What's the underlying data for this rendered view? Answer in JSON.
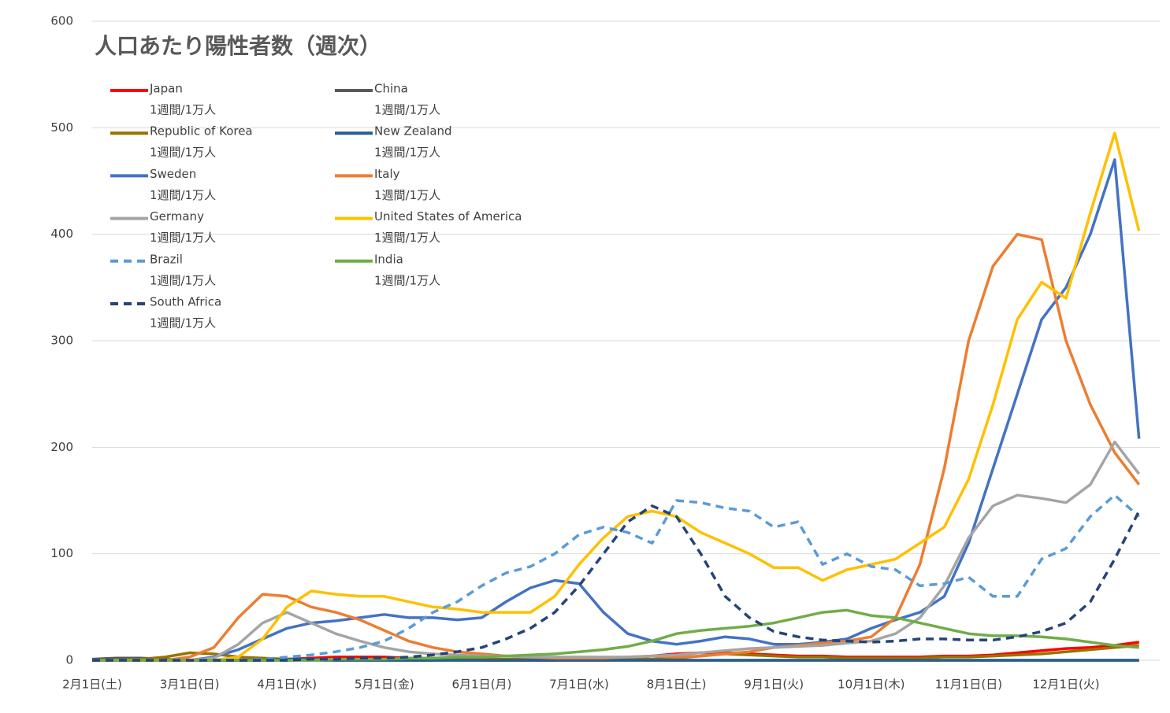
{
  "chart_data": {
    "type": "line",
    "title": "人口あたり陽性者数（週次）",
    "legend_unit": "1週間/1万人",
    "categories": [
      "2月1日(土)",
      null,
      null,
      null,
      "3月1日(日)",
      null,
      null,
      null,
      "4月1日(水)",
      null,
      null,
      null,
      "5月1日(金)",
      null,
      null,
      null,
      "6月1日(月)",
      null,
      null,
      null,
      "7月1日(水)",
      null,
      null,
      null,
      "8月1日(土)",
      null,
      null,
      null,
      "9月1日(火)",
      null,
      null,
      null,
      "10月1日(木)",
      null,
      null,
      null,
      "11月1日(日)",
      null,
      null,
      null,
      "12月1日(火)",
      null,
      null,
      null
    ],
    "ylim": [
      0,
      600
    ],
    "yticks": [
      0,
      100,
      200,
      300,
      400,
      500,
      600
    ],
    "grid": true,
    "legend": "upper left",
    "series": [
      {
        "name": "Japan",
        "color": "#ff0000",
        "style": "solid",
        "values": [
          0,
          0,
          0,
          0,
          0,
          0,
          0,
          1,
          1,
          2,
          3,
          3,
          3,
          2,
          1,
          1,
          0,
          0,
          0,
          0,
          1,
          1,
          2,
          4,
          6,
          7,
          7,
          6,
          5,
          4,
          4,
          3,
          3,
          3,
          3,
          4,
          4,
          5,
          7,
          9,
          11,
          12,
          14,
          17
        ]
      },
      {
        "name": "China",
        "color": "#595959",
        "style": "solid",
        "values": [
          1,
          2,
          2,
          1,
          0,
          0,
          0,
          0,
          0,
          0,
          0,
          0,
          0,
          0,
          0,
          0,
          0,
          0,
          0,
          0,
          0,
          0,
          0,
          0,
          0,
          0,
          0,
          0,
          0,
          0,
          0,
          0,
          0,
          0,
          0,
          0,
          0,
          0,
          0,
          0,
          0,
          0,
          0,
          0
        ]
      },
      {
        "name": "Republic of Korea",
        "color": "#997300",
        "style": "solid",
        "values": [
          0,
          0,
          1,
          3,
          7,
          6,
          3,
          2,
          1,
          1,
          1,
          1,
          0,
          0,
          0,
          1,
          1,
          1,
          1,
          1,
          1,
          1,
          1,
          1,
          2,
          4,
          6,
          5,
          4,
          3,
          3,
          2,
          2,
          2,
          2,
          3,
          3,
          4,
          5,
          6,
          8,
          10,
          12,
          14
        ]
      },
      {
        "name": "New Zealand",
        "color": "#255e91",
        "style": "solid",
        "values": [
          0,
          0,
          0,
          0,
          0,
          0,
          0,
          0,
          1,
          1,
          0,
          0,
          0,
          0,
          0,
          0,
          0,
          0,
          0,
          0,
          0,
          0,
          0,
          0,
          0,
          0,
          0,
          0,
          0,
          0,
          0,
          0,
          0,
          0,
          0,
          0,
          0,
          0,
          0,
          0,
          0,
          0,
          0,
          0
        ]
      },
      {
        "name": "Sweden",
        "color": "#4472c4",
        "style": "solid",
        "values": [
          0,
          0,
          0,
          0,
          0,
          3,
          10,
          20,
          30,
          35,
          37,
          40,
          43,
          40,
          40,
          38,
          40,
          55,
          68,
          75,
          72,
          45,
          25,
          18,
          15,
          18,
          22,
          20,
          15,
          15,
          17,
          20,
          30,
          38,
          45,
          60,
          110,
          180,
          250,
          320,
          350,
          400,
          470,
          208
        ]
      },
      {
        "name": "Italy",
        "color": "#ed7d31",
        "style": "solid",
        "values": [
          0,
          0,
          0,
          0,
          3,
          12,
          40,
          62,
          60,
          50,
          45,
          38,
          28,
          18,
          12,
          8,
          6,
          4,
          3,
          2,
          2,
          2,
          3,
          4,
          3,
          4,
          6,
          8,
          12,
          14,
          16,
          18,
          22,
          40,
          90,
          180,
          300,
          370,
          400,
          395,
          300,
          240,
          195,
          165
        ]
      },
      {
        "name": "Germany",
        "color": "#a5a5a5",
        "style": "solid",
        "values": [
          0,
          0,
          0,
          0,
          0,
          2,
          15,
          35,
          45,
          35,
          25,
          18,
          12,
          8,
          6,
          5,
          4,
          4,
          3,
          3,
          3,
          3,
          3,
          4,
          5,
          7,
          9,
          11,
          12,
          13,
          14,
          16,
          18,
          25,
          40,
          70,
          115,
          145,
          155,
          152,
          148,
          165,
          205,
          175
        ]
      },
      {
        "name": "United States of America",
        "color": "#ffc000",
        "style": "solid",
        "values": [
          0,
          0,
          0,
          0,
          0,
          0,
          3,
          20,
          50,
          65,
          62,
          60,
          60,
          55,
          50,
          48,
          45,
          45,
          45,
          60,
          90,
          115,
          135,
          140,
          135,
          120,
          110,
          100,
          87,
          87,
          75,
          85,
          90,
          95,
          110,
          125,
          170,
          240,
          320,
          355,
          340,
          420,
          495,
          403
        ]
      },
      {
        "name": "Brazil",
        "color": "#5b9bd5",
        "style": "dashed",
        "values": [
          0,
          0,
          0,
          0,
          0,
          0,
          0,
          1,
          3,
          5,
          8,
          12,
          18,
          30,
          45,
          55,
          70,
          82,
          88,
          100,
          118,
          125,
          120,
          110,
          150,
          148,
          143,
          140,
          125,
          130,
          90,
          100,
          88,
          85,
          70,
          72,
          78,
          60,
          60,
          95,
          105,
          135,
          155,
          135
        ]
      },
      {
        "name": "India",
        "color": "#70ad47",
        "style": "solid",
        "values": [
          0,
          0,
          0,
          0,
          0,
          0,
          0,
          0,
          0,
          0,
          1,
          1,
          1,
          2,
          2,
          3,
          3,
          4,
          5,
          6,
          8,
          10,
          13,
          18,
          25,
          28,
          30,
          32,
          35,
          40,
          45,
          47,
          42,
          40,
          35,
          30,
          25,
          23,
          23,
          22,
          20,
          17,
          14,
          12
        ]
      },
      {
        "name": "South Africa",
        "color": "#264478",
        "style": "dashed",
        "values": [
          0,
          0,
          0,
          0,
          0,
          0,
          0,
          0,
          0,
          1,
          1,
          2,
          2,
          3,
          5,
          8,
          12,
          20,
          30,
          45,
          70,
          100,
          130,
          145,
          135,
          100,
          60,
          40,
          27,
          22,
          19,
          18,
          17,
          18,
          20,
          20,
          19,
          19,
          22,
          27,
          35,
          55,
          95,
          140
        ]
      }
    ]
  }
}
